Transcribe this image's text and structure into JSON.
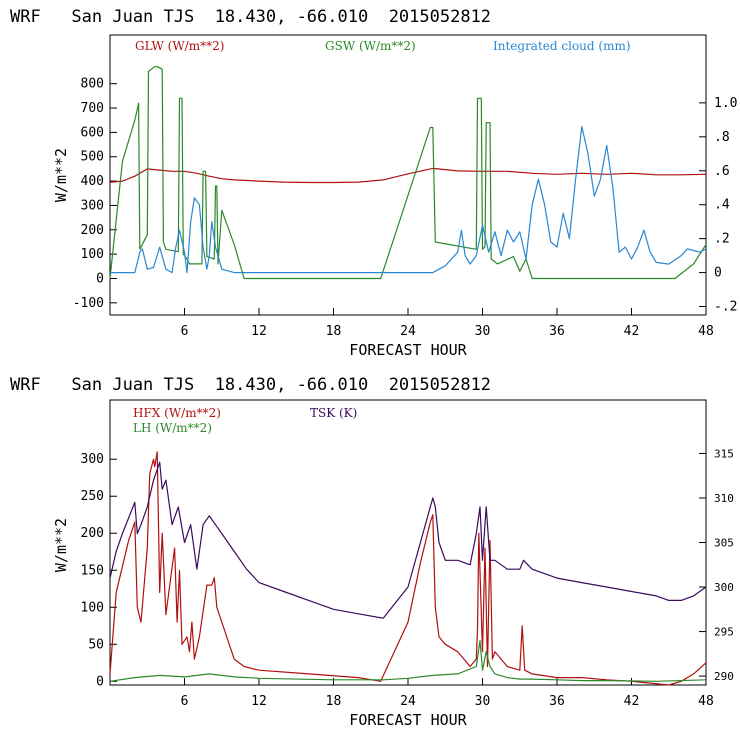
{
  "chart_data": [
    {
      "type": "line",
      "title": "WRF   San Juan TJS  18.430, -66.010  2015052812",
      "xlabel": "FORECAST HOUR",
      "ylabel": "W/m**2",
      "xlim": [
        0,
        48
      ],
      "ylim": [
        -150,
        1000
      ],
      "y2lim": [
        -0.25,
        1.4
      ],
      "xticks": [
        "6",
        "12",
        "18",
        "24",
        "30",
        "36",
        "42",
        "48"
      ],
      "yticks": [
        "-100",
        "0",
        "100",
        "200",
        "300",
        "400",
        "500",
        "600",
        "700",
        "800"
      ],
      "y2ticks": [
        "-.2",
        "0",
        ".2",
        ".4",
        ".6",
        ".8",
        "1.0"
      ],
      "series": [
        {
          "name": "GLW (W/m**2)",
          "color": "#b01010",
          "axis": "left",
          "x": [
            0,
            1,
            2,
            3,
            4,
            5,
            6,
            7,
            8,
            9,
            10,
            12,
            14,
            16,
            18,
            20,
            22,
            24,
            26,
            28,
            30,
            32,
            34,
            36,
            38,
            40,
            42,
            44,
            46,
            48
          ],
          "y": [
            395,
            400,
            420,
            450,
            445,
            440,
            440,
            432,
            420,
            410,
            405,
            400,
            396,
            394,
            394,
            396,
            405,
            430,
            452,
            442,
            440,
            440,
            432,
            428,
            432,
            428,
            432,
            426,
            426,
            428
          ]
        },
        {
          "name": "GSW (W/m**2)",
          "color": "#2a8a2a",
          "axis": "left",
          "x": [
            0,
            1,
            2,
            2.3,
            2.4,
            3.0,
            3.1,
            3.6,
            3.8,
            4.2,
            4.3,
            4.5,
            5.5,
            5.6,
            5.8,
            5.9,
            6.2,
            6.4,
            7.4,
            7.5,
            7.7,
            7.8,
            8.4,
            8.5,
            8.6,
            8.7,
            9,
            10,
            10.8,
            11,
            21.8,
            25.8,
            26,
            26.2,
            29.5,
            29.6,
            29.9,
            30.0,
            30.2,
            30.3,
            30.6,
            30.7,
            31.2,
            32.5,
            33.0,
            33.5,
            34.0,
            36,
            38,
            40,
            42,
            45.5,
            46,
            47,
            48
          ],
          "y": [
            0,
            480,
            650,
            720,
            120,
            180,
            850,
            870,
            870,
            860,
            150,
            120,
            110,
            740,
            740,
            100,
            80,
            60,
            60,
            440,
            440,
            90,
            80,
            380,
            380,
            60,
            280,
            140,
            0,
            0,
            0,
            620,
            620,
            150,
            120,
            740,
            740,
            120,
            130,
            640,
            640,
            80,
            60,
            90,
            30,
            80,
            0,
            0,
            0,
            0,
            0,
            0,
            20,
            60,
            140
          ]
        },
        {
          "name": "Integrated cloud (mm)",
          "color": "#2a87d2",
          "axis": "right",
          "x": [
            0,
            2,
            2.4,
            2.6,
            3,
            3.5,
            4,
            4.5,
            5,
            5.3,
            5.6,
            6,
            6.2,
            6.5,
            6.8,
            7.2,
            7.5,
            7.8,
            8,
            8.2,
            8.5,
            9,
            10,
            12,
            18,
            24,
            26,
            26.5,
            27,
            28,
            28.3,
            28.6,
            29,
            29.5,
            30,
            30.5,
            31,
            31.5,
            32,
            32.5,
            33,
            33.5,
            34,
            34.5,
            35,
            35.5,
            36,
            36.5,
            37,
            37.5,
            38,
            38.5,
            39,
            39.5,
            40,
            40.5,
            41,
            41.5,
            42,
            42.5,
            43,
            43.5,
            44,
            45,
            46,
            46.5,
            47,
            47.5,
            48
          ],
          "y": [
            0,
            0,
            0.12,
            0.14,
            0.02,
            0.03,
            0.15,
            0.02,
            0.0,
            0.15,
            0.25,
            0.12,
            0.0,
            0.3,
            0.44,
            0.4,
            0.15,
            0.02,
            0.1,
            0.3,
            0.15,
            0.02,
            0.0,
            0.0,
            0.0,
            0.0,
            0.0,
            0.02,
            0.04,
            0.12,
            0.25,
            0.1,
            0.05,
            0.1,
            0.28,
            0.12,
            0.24,
            0.1,
            0.25,
            0.18,
            0.24,
            0.08,
            0.4,
            0.55,
            0.4,
            0.18,
            0.15,
            0.35,
            0.2,
            0.55,
            0.86,
            0.7,
            0.45,
            0.55,
            0.75,
            0.5,
            0.12,
            0.15,
            0.08,
            0.15,
            0.25,
            0.12,
            0.06,
            0.05,
            0.1,
            0.14,
            0.13,
            0.12,
            0.14
          ]
        }
      ]
    },
    {
      "type": "line",
      "title": "WRF   San Juan TJS  18.430, -66.010  2015052812",
      "xlabel": "FORECAST HOUR",
      "ylabel": "W/m**2",
      "xlim": [
        0,
        48
      ],
      "ylim": [
        -5,
        380
      ],
      "y2lim": [
        289,
        321
      ],
      "xticks": [
        "6",
        "12",
        "18",
        "24",
        "30",
        "36",
        "42",
        "48"
      ],
      "yticks": [
        "0",
        "50",
        "100",
        "150",
        "200",
        "250",
        "300"
      ],
      "y2ticks": [
        "290",
        "295",
        "300",
        "305",
        "310",
        "315"
      ],
      "series": [
        {
          "name": "HFX (W/m**2)",
          "color": "#b01010",
          "axis": "left",
          "x": [
            0,
            0.5,
            1.5,
            2,
            2.2,
            2.5,
            3,
            3.2,
            3.5,
            3.6,
            3.8,
            4,
            4.2,
            4.5,
            5.2,
            5.4,
            5.6,
            5.8,
            6.2,
            6.4,
            6.6,
            6.8,
            7.2,
            7.8,
            8.2,
            8.4,
            8.6,
            9,
            10,
            10.8,
            12,
            16,
            20,
            21.8,
            24,
            25,
            25.8,
            26,
            26.2,
            26.5,
            27,
            28,
            29,
            29.5,
            29.6,
            29.7,
            30,
            30.2,
            30.4,
            30.6,
            30.8,
            31,
            32,
            33,
            33.2,
            33.4,
            34,
            36,
            38,
            40,
            42,
            45,
            46,
            47,
            48
          ],
          "y": [
            10,
            120,
            190,
            215,
            100,
            80,
            180,
            280,
            300,
            290,
            310,
            120,
            200,
            90,
            180,
            80,
            150,
            50,
            60,
            40,
            80,
            30,
            60,
            130,
            130,
            140,
            100,
            80,
            30,
            20,
            15,
            10,
            5,
            0,
            80,
            160,
            215,
            225,
            100,
            60,
            50,
            40,
            20,
            30,
            70,
            200,
            40,
            180,
            20,
            190,
            30,
            40,
            20,
            15,
            75,
            15,
            10,
            5,
            5,
            2,
            0,
            -5,
            0,
            10,
            25
          ]
        },
        {
          "name": "LH (W/m**2)",
          "color": "#2a8a2a",
          "axis": "left",
          "x": [
            0,
            2,
            4,
            6,
            8,
            10,
            12,
            18,
            22,
            24,
            26,
            28,
            29.5,
            29.8,
            30,
            30.3,
            30.6,
            31,
            32,
            33,
            34,
            36,
            38,
            40,
            44,
            48
          ],
          "y": [
            0,
            5,
            8,
            6,
            10,
            6,
            4,
            2,
            2,
            4,
            8,
            10,
            20,
            55,
            15,
            40,
            20,
            10,
            5,
            3,
            3,
            2,
            1,
            1,
            0,
            2
          ]
        },
        {
          "name": "TSK (K)",
          "color": "#3a0a5c",
          "axis": "right",
          "x": [
            0,
            0.5,
            1,
            2,
            2.2,
            2.5,
            3,
            3.5,
            4,
            4.2,
            4.5,
            5,
            5.5,
            6,
            6.5,
            7,
            7.5,
            8,
            8.5,
            9,
            10,
            11,
            12,
            14,
            16,
            18,
            20,
            22,
            24,
            25,
            26,
            26.2,
            26.5,
            27,
            28,
            29,
            29.5,
            29.8,
            30,
            30.3,
            30.6,
            31,
            32,
            33,
            33.3,
            34,
            36,
            38,
            40,
            42,
            44,
            45,
            46,
            47,
            48
          ],
          "y": [
            301,
            304,
            306,
            309.5,
            306,
            307,
            309,
            312,
            314,
            311,
            312,
            307,
            309,
            305,
            307,
            302,
            307,
            308,
            307,
            306,
            304,
            302,
            300.5,
            299.5,
            298.5,
            297.5,
            297,
            296.5,
            300,
            305,
            310,
            309,
            305,
            303,
            303,
            302.5,
            306,
            309,
            303,
            309,
            303,
            303,
            302,
            302,
            303,
            302,
            301,
            300.5,
            300,
            299.5,
            299,
            298.5,
            298.5,
            299,
            300
          ]
        }
      ]
    }
  ]
}
